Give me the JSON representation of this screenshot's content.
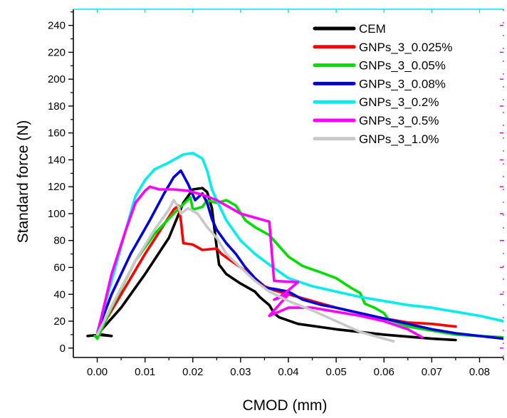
{
  "chart_data": {
    "type": "line",
    "xlabel": "CMOD (mm)",
    "ylabel": "Standard force (N)",
    "xlim": [
      -0.005,
      0.085
    ],
    "ylim": [
      -7,
      252
    ],
    "xticks": [
      0.0,
      0.01,
      0.02,
      0.03,
      0.04,
      0.05,
      0.06,
      0.07,
      0.08
    ],
    "xtick_labels": [
      "0.00",
      "0.01",
      "0.02",
      "0.03",
      "0.04",
      "0.05",
      "0.06",
      "0.07",
      "0.08"
    ],
    "yticks": [
      0,
      20,
      40,
      60,
      80,
      100,
      120,
      140,
      160,
      180,
      200,
      220,
      240
    ],
    "ytick_labels": [
      "0",
      "20",
      "40",
      "60",
      "80",
      "100",
      "120",
      "140",
      "160",
      "180",
      "200",
      "220",
      "240"
    ],
    "grid": false,
    "legend_position": "top-right",
    "series": [
      {
        "name": "CEM",
        "color": "#000000",
        "points": [
          [
            -0.002,
            9
          ],
          [
            0.001,
            10
          ],
          [
            0.003,
            9
          ],
          [
            0.0,
            10
          ],
          [
            0.005,
            30
          ],
          [
            0.01,
            55
          ],
          [
            0.015,
            82
          ],
          [
            0.018,
            108
          ],
          [
            0.02,
            118
          ],
          [
            0.022,
            119
          ],
          [
            0.023,
            116
          ],
          [
            0.024,
            104
          ],
          [
            0.025,
            75
          ],
          [
            0.0255,
            62
          ],
          [
            0.027,
            55
          ],
          [
            0.03,
            48
          ],
          [
            0.033,
            42
          ],
          [
            0.034,
            38
          ],
          [
            0.035,
            35
          ],
          [
            0.036,
            32
          ],
          [
            0.037,
            26
          ],
          [
            0.038,
            23
          ],
          [
            0.042,
            18
          ],
          [
            0.05,
            14
          ],
          [
            0.06,
            10
          ],
          [
            0.07,
            7
          ],
          [
            0.075,
            6
          ]
        ]
      },
      {
        "name": "GNPs_3_0.025%",
        "color": "#ff0000",
        "points": [
          [
            0.0,
            10
          ],
          [
            0.005,
            40
          ],
          [
            0.01,
            70
          ],
          [
            0.014,
            92
          ],
          [
            0.016,
            103
          ],
          [
            0.017,
            106
          ],
          [
            0.0175,
            95
          ],
          [
            0.018,
            78
          ],
          [
            0.02,
            77
          ],
          [
            0.022,
            73
          ],
          [
            0.025,
            74
          ],
          [
            0.026,
            70
          ],
          [
            0.028,
            65
          ],
          [
            0.03,
            60
          ],
          [
            0.033,
            52
          ],
          [
            0.035,
            46
          ],
          [
            0.037,
            43
          ],
          [
            0.04,
            40
          ],
          [
            0.042,
            38
          ],
          [
            0.045,
            35
          ],
          [
            0.05,
            30
          ],
          [
            0.055,
            26
          ],
          [
            0.06,
            22
          ],
          [
            0.065,
            19
          ],
          [
            0.07,
            18
          ],
          [
            0.075,
            16
          ]
        ]
      },
      {
        "name": "GNPs_3_0.05%",
        "color": "#00dd00",
        "points": [
          [
            -0.0005,
            9
          ],
          [
            0.0,
            7
          ],
          [
            0.003,
            30
          ],
          [
            0.008,
            65
          ],
          [
            0.012,
            85
          ],
          [
            0.016,
            100
          ],
          [
            0.018,
            107
          ],
          [
            0.0195,
            112
          ],
          [
            0.02,
            103
          ],
          [
            0.022,
            105
          ],
          [
            0.023,
            110
          ],
          [
            0.025,
            108
          ],
          [
            0.027,
            110
          ],
          [
            0.029,
            106
          ],
          [
            0.031,
            95
          ],
          [
            0.033,
            90
          ],
          [
            0.036,
            84
          ],
          [
            0.038,
            76
          ],
          [
            0.04,
            68
          ],
          [
            0.043,
            61
          ],
          [
            0.047,
            56
          ],
          [
            0.05,
            52
          ],
          [
            0.053,
            45
          ],
          [
            0.055,
            41
          ],
          [
            0.056,
            33
          ],
          [
            0.058,
            30
          ],
          [
            0.06,
            26
          ],
          [
            0.061,
            21
          ],
          [
            0.065,
            16
          ],
          [
            0.07,
            13
          ],
          [
            0.075,
            10
          ],
          [
            0.08,
            9
          ],
          [
            0.085,
            8
          ]
        ]
      },
      {
        "name": "GNPs_3_0.08%",
        "color": "#0000dd",
        "points": [
          [
            0.0,
            12
          ],
          [
            0.003,
            40
          ],
          [
            0.007,
            70
          ],
          [
            0.011,
            95
          ],
          [
            0.014,
            115
          ],
          [
            0.016,
            127
          ],
          [
            0.0175,
            132
          ],
          [
            0.019,
            122
          ],
          [
            0.0205,
            110
          ],
          [
            0.022,
            115
          ],
          [
            0.023,
            108
          ],
          [
            0.024,
            96
          ],
          [
            0.025,
            88
          ],
          [
            0.027,
            78
          ],
          [
            0.029,
            70
          ],
          [
            0.031,
            60
          ],
          [
            0.033,
            52
          ],
          [
            0.035,
            45
          ],
          [
            0.037,
            44
          ],
          [
            0.04,
            42
          ],
          [
            0.043,
            36
          ],
          [
            0.047,
            32
          ],
          [
            0.05,
            30
          ],
          [
            0.055,
            26
          ],
          [
            0.06,
            22
          ],
          [
            0.065,
            18
          ],
          [
            0.07,
            14
          ],
          [
            0.075,
            11
          ],
          [
            0.08,
            9
          ],
          [
            0.085,
            7
          ]
        ]
      },
      {
        "name": "GNPs_3_0.2%",
        "color": "#00eeee",
        "points": [
          [
            0.0,
            12
          ],
          [
            0.003,
            50
          ],
          [
            0.006,
            88
          ],
          [
            0.008,
            113
          ],
          [
            0.01,
            125
          ],
          [
            0.012,
            133
          ],
          [
            0.015,
            138
          ],
          [
            0.018,
            144
          ],
          [
            0.02,
            145
          ],
          [
            0.022,
            141
          ],
          [
            0.023,
            132
          ],
          [
            0.024,
            118
          ],
          [
            0.025,
            110
          ],
          [
            0.027,
            95
          ],
          [
            0.03,
            80
          ],
          [
            0.033,
            70
          ],
          [
            0.036,
            62
          ],
          [
            0.04,
            52
          ],
          [
            0.045,
            46
          ],
          [
            0.05,
            42
          ],
          [
            0.055,
            38
          ],
          [
            0.06,
            35
          ],
          [
            0.065,
            32
          ],
          [
            0.07,
            30
          ],
          [
            0.075,
            27
          ],
          [
            0.08,
            24
          ],
          [
            0.085,
            20
          ]
        ]
      },
      {
        "name": "GNPs_3_0.5%",
        "color": "#ff00ff",
        "points": [
          [
            0.0,
            10
          ],
          [
            0.003,
            55
          ],
          [
            0.006,
            88
          ],
          [
            0.008,
            108
          ],
          [
            0.01,
            117
          ],
          [
            0.011,
            120
          ],
          [
            0.013,
            118
          ],
          [
            0.016,
            118
          ],
          [
            0.019,
            117
          ],
          [
            0.022,
            114
          ],
          [
            0.025,
            110
          ],
          [
            0.028,
            104
          ],
          [
            0.03,
            100
          ],
          [
            0.033,
            97
          ],
          [
            0.036,
            94
          ],
          [
            0.037,
            50
          ],
          [
            0.042,
            49
          ],
          [
            0.039,
            40
          ],
          [
            0.037,
            36
          ],
          [
            0.04,
            40
          ],
          [
            0.036,
            24
          ],
          [
            0.04,
            30
          ],
          [
            0.045,
            30
          ],
          [
            0.05,
            27
          ],
          [
            0.055,
            24
          ],
          [
            0.06,
            20
          ],
          [
            0.065,
            14
          ],
          [
            0.068,
            8
          ]
        ]
      },
      {
        "name": "GNPs_3_1.0%",
        "color": "#c8c8c8",
        "points": [
          [
            0.0,
            10
          ],
          [
            0.004,
            38
          ],
          [
            0.008,
            65
          ],
          [
            0.012,
            88
          ],
          [
            0.015,
            103
          ],
          [
            0.016,
            110
          ],
          [
            0.017,
            105
          ],
          [
            0.0175,
            100
          ],
          [
            0.019,
            104
          ],
          [
            0.021,
            100
          ],
          [
            0.023,
            90
          ],
          [
            0.025,
            82
          ],
          [
            0.027,
            70
          ],
          [
            0.03,
            60
          ],
          [
            0.033,
            50
          ],
          [
            0.036,
            42
          ],
          [
            0.04,
            35
          ],
          [
            0.045,
            28
          ],
          [
            0.05,
            20
          ],
          [
            0.055,
            12
          ],
          [
            0.06,
            7
          ],
          [
            0.062,
            5
          ]
        ]
      }
    ]
  }
}
